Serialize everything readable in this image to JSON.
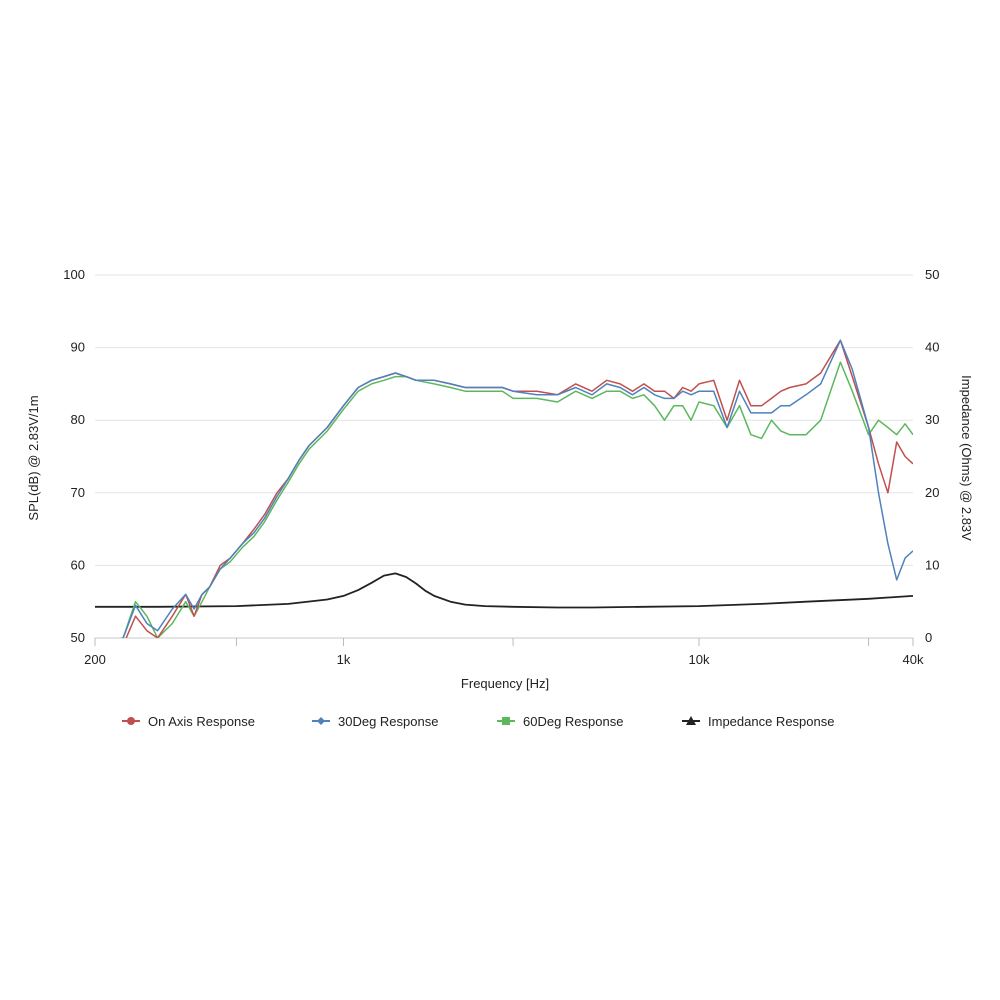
{
  "chart_data": {
    "type": "line",
    "title": "",
    "xlabel": "Frequency [Hz]",
    "ylabel": "SPL(dB) @ 2.83V/1m",
    "y2label": "Impedance (Ohms) @ 2.83V",
    "x_scale": "log",
    "xlim": [
      200,
      40000
    ],
    "ylim": [
      50,
      100
    ],
    "y2lim": [
      0,
      50
    ],
    "x_ticks": [
      {
        "value": 200,
        "label": "200"
      },
      {
        "value": 1000,
        "label": "1k"
      },
      {
        "value": 10000,
        "label": "10k"
      },
      {
        "value": 40000,
        "label": "40k"
      }
    ],
    "x_minor_ticks": [
      500,
      3000,
      30000
    ],
    "y_ticks": [
      {
        "value": 50,
        "label": "50"
      },
      {
        "value": 60,
        "label": "60"
      },
      {
        "value": 70,
        "label": "70"
      },
      {
        "value": 80,
        "label": "80"
      },
      {
        "value": 90,
        "label": "90"
      },
      {
        "value": 100,
        "label": "100"
      }
    ],
    "y2_ticks": [
      {
        "value": 0,
        "label": "0"
      },
      {
        "value": 10,
        "label": "10"
      },
      {
        "value": 20,
        "label": "20"
      },
      {
        "value": 30,
        "label": "30"
      },
      {
        "value": 40,
        "label": "40"
      },
      {
        "value": 50,
        "label": "50"
      }
    ],
    "grid": true,
    "legend_position": "bottom",
    "series": [
      {
        "name": "On Axis Response",
        "axis": "left",
        "color": "#c0504d",
        "marker": "circle",
        "x": [
          200,
          240,
          260,
          280,
          300,
          330,
          360,
          380,
          400,
          420,
          450,
          480,
          520,
          560,
          600,
          650,
          700,
          750,
          800,
          900,
          1000,
          1100,
          1200,
          1300,
          1400,
          1500,
          1600,
          1800,
          2000,
          2200,
          2500,
          2800,
          3000,
          3500,
          4000,
          4500,
          5000,
          5500,
          6000,
          6500,
          7000,
          7500,
          8000,
          8500,
          9000,
          9500,
          10000,
          11000,
          12000,
          13000,
          14000,
          15000,
          16000,
          17000,
          18000,
          20000,
          22000,
          25000,
          27000,
          30000,
          32000,
          34000,
          36000,
          38000,
          40000
        ],
        "values": [
          49,
          49,
          53,
          51,
          50,
          53,
          56,
          53,
          56,
          57,
          60,
          61,
          63,
          65,
          67,
          70,
          72,
          74.5,
          76.5,
          79,
          82,
          84.5,
          85.5,
          86,
          86.5,
          86,
          85.5,
          85.5,
          85,
          84.5,
          84.5,
          84.5,
          84,
          84,
          83.5,
          85,
          84,
          85.5,
          85,
          84,
          85,
          84,
          84,
          83,
          84.5,
          84,
          85,
          85.5,
          80,
          85.5,
          82,
          82,
          83,
          84,
          84.5,
          85,
          86.5,
          91,
          86,
          79,
          74,
          70,
          77,
          75,
          74
        ]
      },
      {
        "name": "30Deg Response",
        "axis": "left",
        "color": "#4f81bd",
        "marker": "diamond",
        "x": [
          200,
          240,
          260,
          280,
          300,
          330,
          360,
          380,
          400,
          420,
          450,
          480,
          520,
          560,
          600,
          650,
          700,
          750,
          800,
          900,
          1000,
          1100,
          1200,
          1300,
          1400,
          1500,
          1600,
          1800,
          2000,
          2200,
          2500,
          2800,
          3000,
          3500,
          4000,
          4500,
          5000,
          5500,
          6000,
          6500,
          7000,
          7500,
          8000,
          8500,
          9000,
          9500,
          10000,
          11000,
          12000,
          13000,
          14000,
          15000,
          16000,
          17000,
          18000,
          20000,
          22000,
          25000,
          27000,
          30000,
          32000,
          34000,
          36000,
          38000,
          40000
        ],
        "values": [
          49,
          50,
          54.5,
          52,
          51,
          54,
          56,
          54,
          56,
          57,
          59.5,
          61,
          63,
          64.5,
          66.5,
          69.5,
          72,
          74.5,
          76.5,
          79,
          82,
          84.5,
          85.5,
          86,
          86.5,
          86,
          85.5,
          85.5,
          85,
          84.5,
          84.5,
          84.5,
          84,
          83.5,
          83.5,
          84.5,
          83.5,
          85,
          84.5,
          83.5,
          84.5,
          83.5,
          83,
          83,
          84,
          83.5,
          84,
          84,
          79,
          84,
          81,
          81,
          81,
          82,
          82,
          83.5,
          85,
          91,
          87,
          79,
          70,
          63,
          58,
          61,
          62
        ]
      },
      {
        "name": "60Deg Response",
        "axis": "left",
        "color": "#5cb85c",
        "marker": "square",
        "x": [
          200,
          240,
          260,
          280,
          300,
          330,
          360,
          380,
          400,
          420,
          450,
          480,
          520,
          560,
          600,
          650,
          700,
          750,
          800,
          900,
          1000,
          1100,
          1200,
          1300,
          1400,
          1500,
          1600,
          1800,
          2000,
          2200,
          2500,
          2800,
          3000,
          3500,
          4000,
          4500,
          5000,
          5500,
          6000,
          6500,
          7000,
          7500,
          8000,
          8500,
          9000,
          9500,
          10000,
          11000,
          12000,
          13000,
          14000,
          15000,
          16000,
          17000,
          18000,
          20000,
          22000,
          25000,
          27000,
          30000,
          32000,
          34000,
          36000,
          38000,
          40000
        ],
        "values": [
          49,
          50,
          55,
          53,
          50,
          52,
          55,
          53,
          55,
          57,
          59.5,
          60.5,
          62.5,
          64,
          66,
          69,
          71.5,
          74,
          76,
          78.5,
          81.5,
          84,
          85,
          85.5,
          86,
          86,
          85.5,
          85,
          84.5,
          84,
          84,
          84,
          83,
          83,
          82.5,
          84,
          83,
          84,
          84,
          83,
          83.5,
          82,
          80,
          82,
          82,
          80,
          82.5,
          82,
          79,
          82,
          78,
          77.5,
          80,
          78.5,
          78,
          78,
          80,
          88,
          84,
          78,
          80,
          79,
          78,
          79.5,
          78
        ]
      },
      {
        "name": "Impedance Response",
        "axis": "right",
        "color": "#222222",
        "marker": "triangle",
        "x": [
          200,
          300,
          500,
          700,
          900,
          1000,
          1100,
          1200,
          1300,
          1400,
          1500,
          1600,
          1700,
          1800,
          2000,
          2200,
          2500,
          3000,
          4000,
          5000,
          7000,
          10000,
          15000,
          20000,
          30000,
          40000
        ],
        "values": [
          4.3,
          4.3,
          4.4,
          4.7,
          5.3,
          5.8,
          6.6,
          7.6,
          8.6,
          8.9,
          8.4,
          7.5,
          6.5,
          5.8,
          5.0,
          4.6,
          4.4,
          4.3,
          4.2,
          4.2,
          4.3,
          4.4,
          4.7,
          5.0,
          5.4,
          5.8
        ]
      }
    ]
  }
}
